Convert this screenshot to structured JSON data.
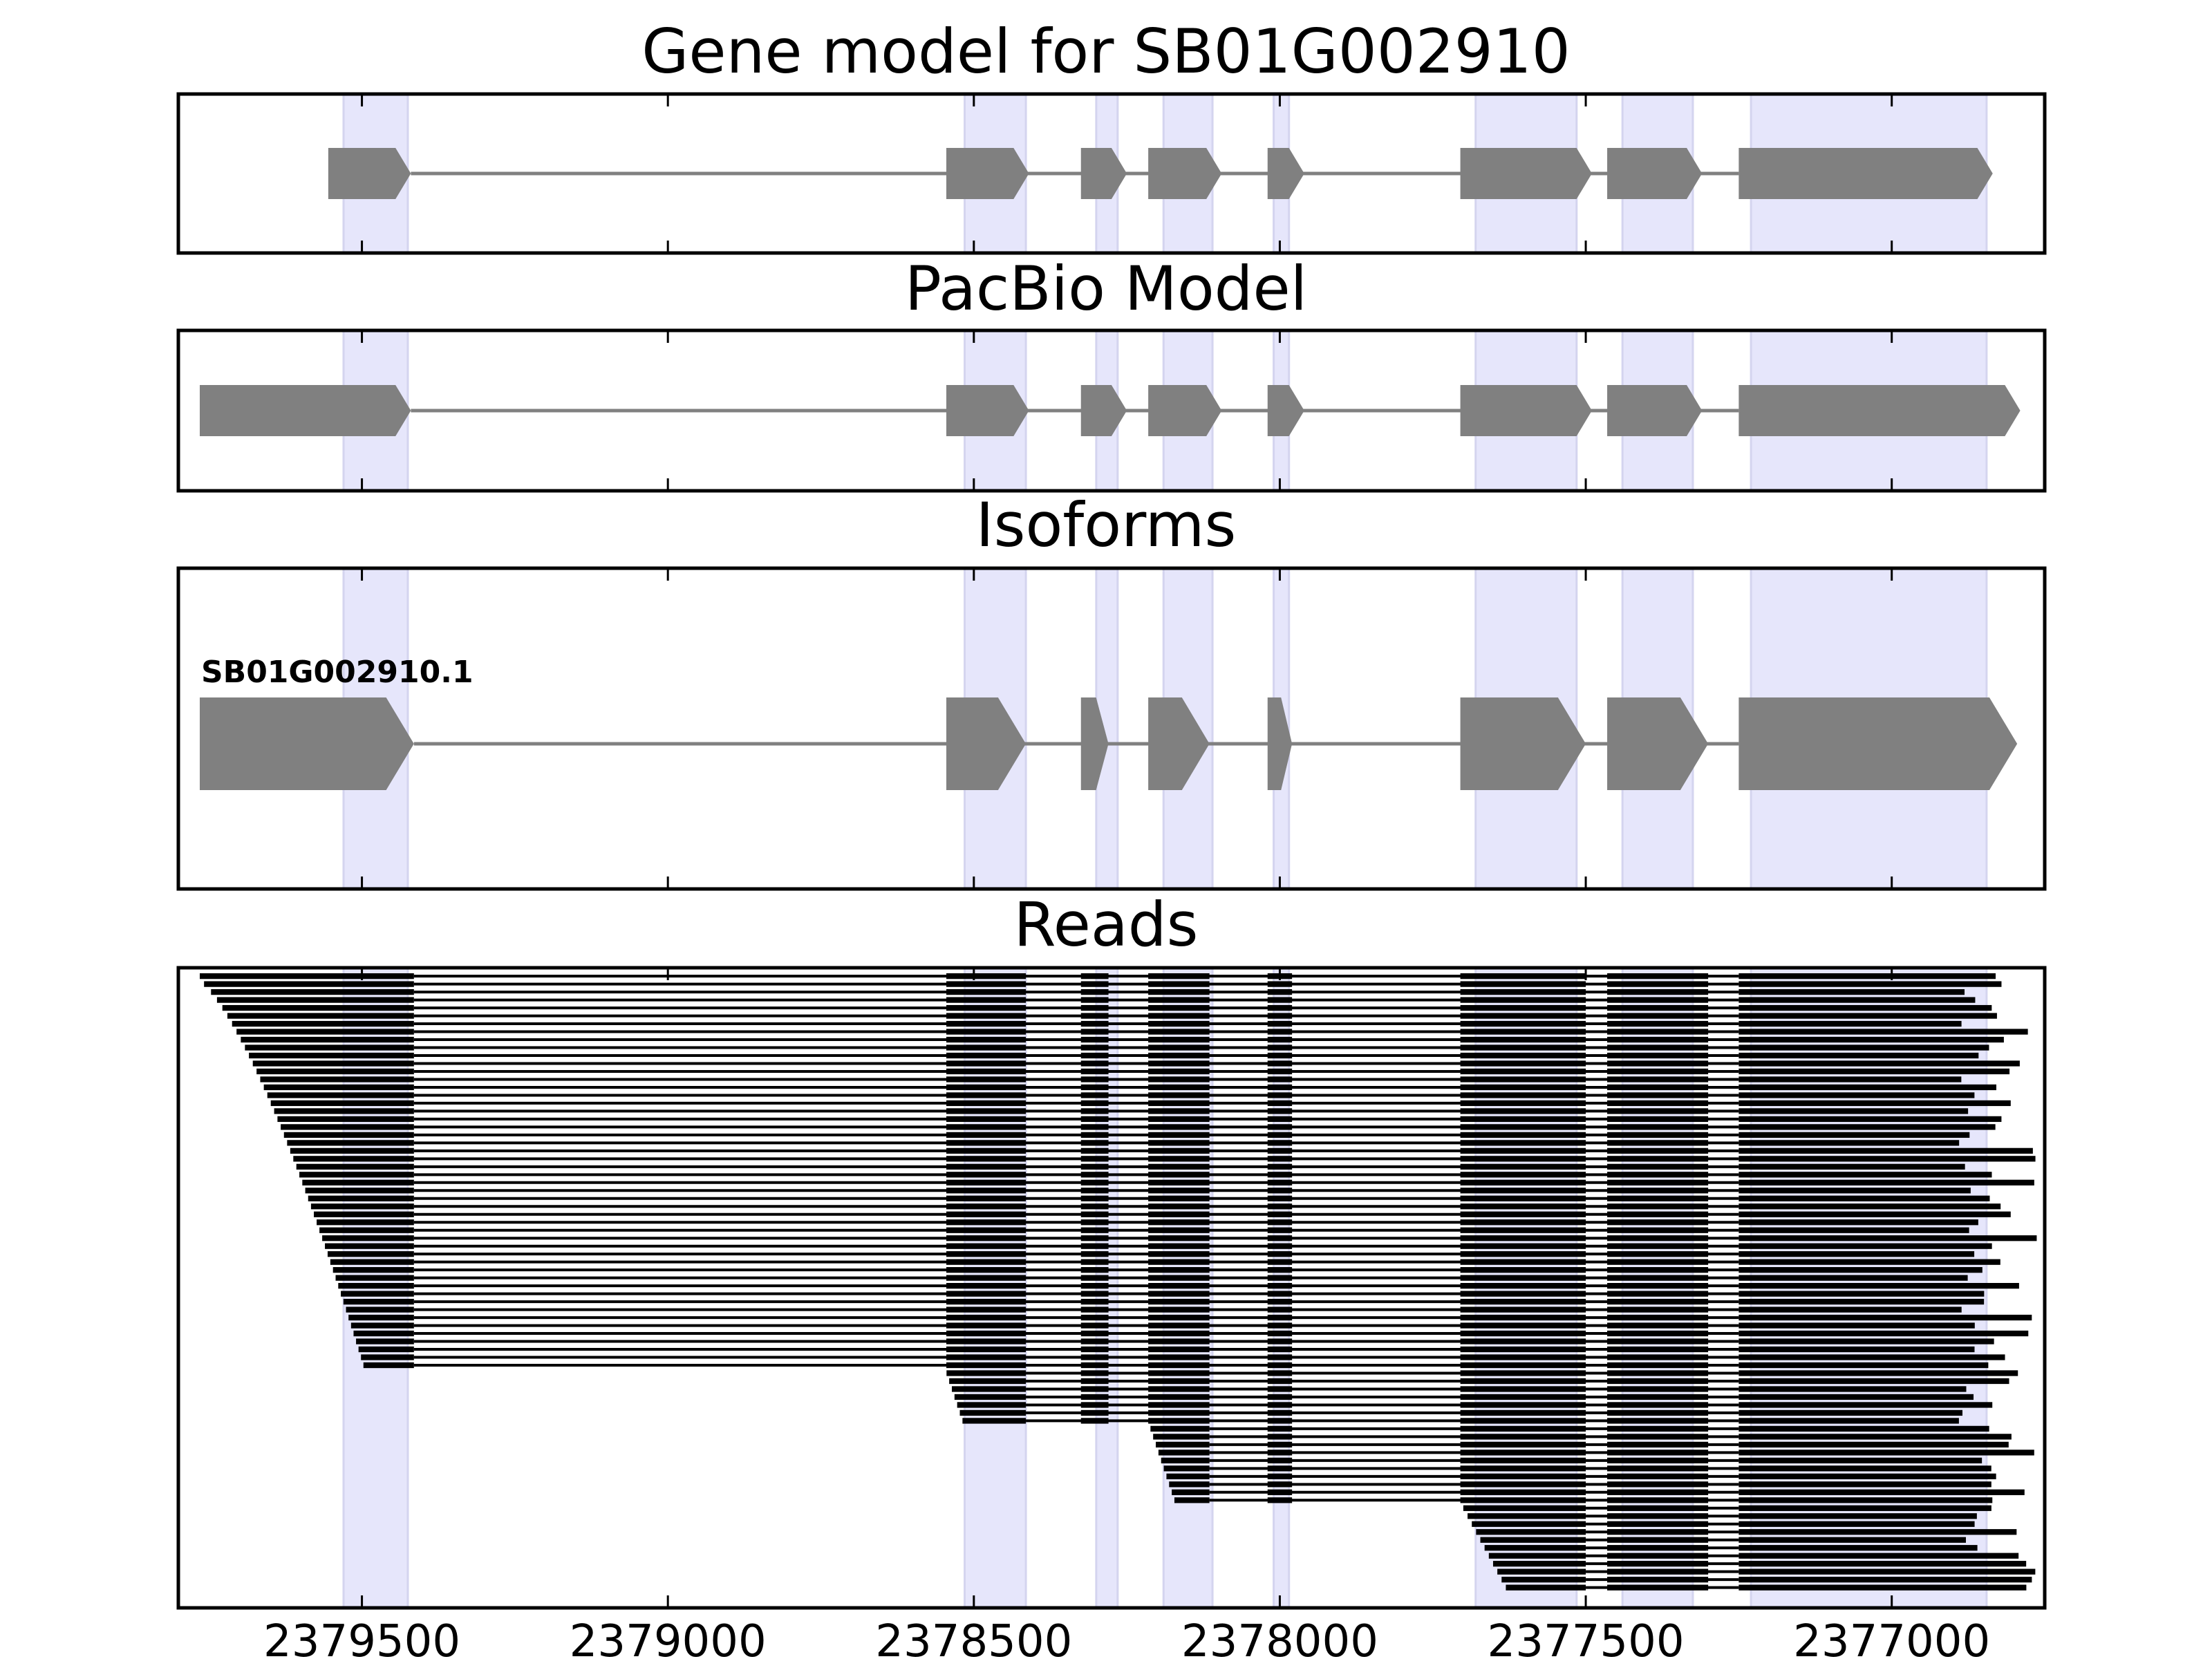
{
  "chart_data": {
    "type": "gene_structure",
    "x_axis": {
      "range": [
        2379800,
        2376750
      ],
      "reversed": true,
      "ticks": [
        2379500,
        2379000,
        2378500,
        2378000,
        2377500,
        2377000
      ],
      "tick_labels": [
        "2379500",
        "2379000",
        "2378500",
        "2378000",
        "2377500",
        "2377000"
      ]
    },
    "highlight_regions": [
      [
        2379530,
        2379425
      ],
      [
        2378515,
        2378415
      ],
      [
        2378300,
        2378265
      ],
      [
        2378190,
        2378110
      ],
      [
        2378010,
        2377985
      ],
      [
        2377680,
        2377515
      ],
      [
        2377440,
        2377325
      ],
      [
        2377230,
        2376845
      ]
    ],
    "panels": [
      {
        "title": "Gene model for SB01G002910",
        "models": [
          {
            "label": "",
            "exons": [
              [
                2379555,
                2379420
              ],
              [
                2378545,
                2378410
              ],
              [
                2378325,
                2378250
              ],
              [
                2378215,
                2378095
              ],
              [
                2378020,
                2377960
              ],
              [
                2377705,
                2377490
              ],
              [
                2377465,
                2377310
              ],
              [
                2377250,
                2376835
              ]
            ]
          }
        ]
      },
      {
        "title": "PacBio Model",
        "models": [
          {
            "label": "",
            "exons": [
              [
                2379765,
                2379420
              ],
              [
                2378545,
                2378410
              ],
              [
                2378325,
                2378250
              ],
              [
                2378215,
                2378095
              ],
              [
                2378020,
                2377960
              ],
              [
                2377705,
                2377490
              ],
              [
                2377465,
                2377310
              ],
              [
                2377250,
                2376790
              ]
            ]
          }
        ]
      },
      {
        "title": "Isoforms",
        "models": [
          {
            "label": "SB01G002910.1",
            "exons": [
              [
                2379765,
                2379415
              ],
              [
                2378545,
                2378415
              ],
              [
                2378325,
                2378280
              ],
              [
                2378215,
                2378115
              ],
              [
                2378020,
                2377980
              ],
              [
                2377705,
                2377500
              ],
              [
                2377465,
                2377300
              ],
              [
                2377250,
                2376795
              ]
            ]
          }
        ]
      },
      {
        "title": "Reads",
        "read_count": 78
      }
    ],
    "colors": {
      "highlight": "#e6e6fb",
      "exon": "#808080",
      "intron": "#808080",
      "read": "#000000"
    }
  }
}
